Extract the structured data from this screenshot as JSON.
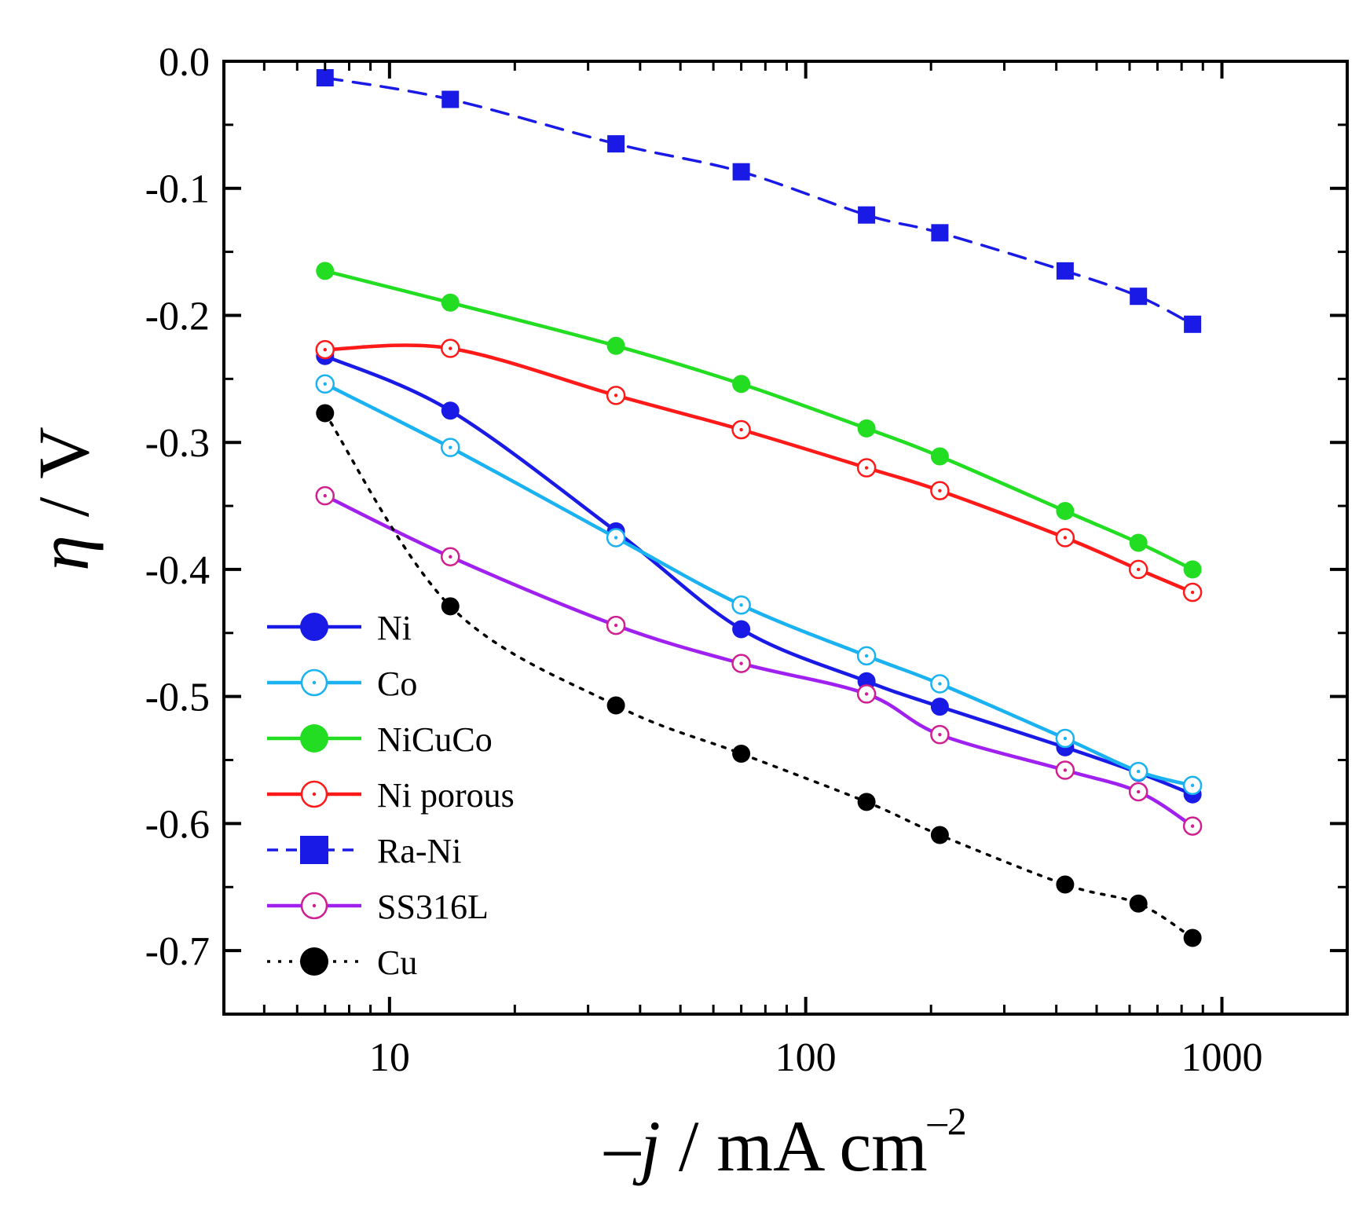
{
  "chart_data": {
    "type": "line",
    "title": "",
    "xlabel": "",
    "ylabel": "",
    "xlabel_parts": {
      "prefix": "–",
      "var": "j",
      "unit": " / mA cm",
      "sup": "–2"
    },
    "ylabel_parts": {
      "var": "η",
      "unit": " / V"
    },
    "x_scale": "log",
    "xlim": [
      4,
      2000
    ],
    "ylim": [
      -0.75,
      0.0
    ],
    "x_ticks": [
      10,
      100,
      1000
    ],
    "x_tick_labels": [
      "10",
      "100",
      "1000"
    ],
    "y_ticks": [
      0.0,
      -0.1,
      -0.2,
      -0.3,
      -0.4,
      -0.5,
      -0.6,
      -0.7
    ],
    "y_tick_labels": [
      "0.0",
      "-0.1",
      "-0.2",
      "-0.3",
      "-0.4",
      "-0.5",
      "-0.6",
      "-0.7"
    ],
    "grid": false,
    "legend_position": "bottom-left",
    "x": [
      7,
      14,
      35,
      70,
      140,
      210,
      420,
      630,
      850
    ],
    "series": [
      {
        "name": "Ni",
        "color": "#1a1ae6",
        "marker": "circle-filled",
        "line": "solid",
        "values": [
          -0.232,
          -0.275,
          -0.37,
          -0.447,
          -0.488,
          -0.508,
          -0.54,
          -0.56,
          -0.577
        ]
      },
      {
        "name": "Co",
        "color": "#1ab2f0",
        "marker": "circle-open",
        "line": "solid",
        "values": [
          -0.254,
          -0.304,
          -0.375,
          -0.428,
          -0.468,
          -0.49,
          -0.533,
          -0.559,
          -0.57
        ]
      },
      {
        "name": "NiCuCo",
        "color": "#22dd22",
        "marker": "circle-filled",
        "line": "solid",
        "values": [
          -0.165,
          -0.19,
          -0.224,
          -0.254,
          -0.289,
          -0.311,
          -0.354,
          -0.379,
          -0.4
        ]
      },
      {
        "name": "Ni porous",
        "color": "#ff1a1a",
        "marker": "circle-open",
        "line": "solid",
        "values": [
          -0.227,
          -0.226,
          -0.263,
          -0.29,
          -0.32,
          -0.338,
          -0.375,
          -0.4,
          -0.418
        ]
      },
      {
        "name": "Ra-Ni",
        "color": "#1a1ae6",
        "marker": "square-filled",
        "line": "dashed",
        "values": [
          -0.013,
          -0.03,
          -0.065,
          -0.087,
          -0.121,
          -0.135,
          -0.165,
          -0.185,
          -0.207
        ]
      },
      {
        "name": "SS316L",
        "color": "#a020f0",
        "marker": "circle-open",
        "line": "solid",
        "marker_edge": "#d02090",
        "values": [
          -0.342,
          -0.39,
          -0.444,
          -0.474,
          -0.498,
          -0.53,
          -0.558,
          -0.575,
          -0.602
        ]
      },
      {
        "name": "Cu",
        "color": "#000000",
        "marker": "circle-filled",
        "line": "dotted",
        "values": [
          -0.277,
          -0.429,
          -0.507,
          -0.545,
          -0.583,
          -0.609,
          -0.648,
          -0.663,
          -0.69
        ]
      }
    ]
  }
}
